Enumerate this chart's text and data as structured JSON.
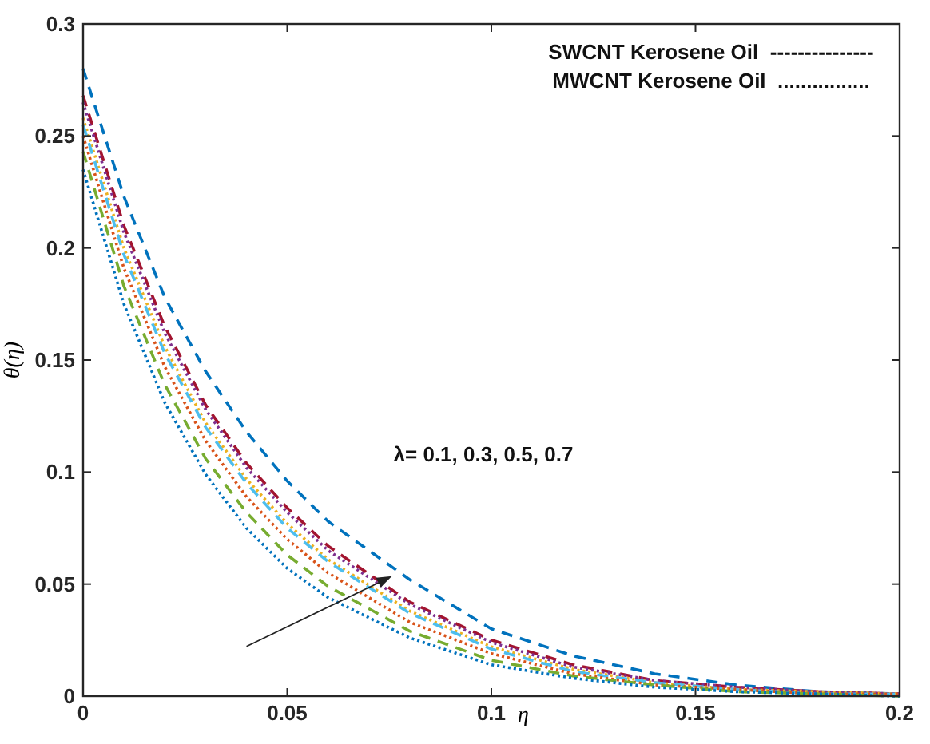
{
  "chart_data": {
    "type": "line",
    "xlabel": "η",
    "ylabel": "θ(η)",
    "x": [
      0,
      0.01,
      0.02,
      0.03,
      0.04,
      0.05,
      0.06,
      0.08,
      0.1,
      0.12,
      0.14,
      0.16,
      0.18,
      0.2
    ],
    "xlim": [
      0,
      0.2
    ],
    "xticks": [
      0,
      0.05,
      0.1,
      0.15,
      0.2
    ],
    "ylim": [
      0,
      0.3
    ],
    "yticks": [
      0,
      0.05,
      0.1,
      0.15,
      0.2,
      0.25,
      0.3
    ],
    "grid": false,
    "marker": "none",
    "series": [
      {
        "color": "#0072bd",
        "line_style": "dashed",
        "values": [
          0.28,
          0.223,
          0.178,
          0.145,
          0.118,
          0.096,
          0.078,
          0.052,
          0.03,
          0.018,
          0.01,
          0.005,
          0.002,
          0.001
        ]
      },
      {
        "color": "#a2142f",
        "line_style": "dashed",
        "values": [
          0.268,
          0.21,
          0.165,
          0.13,
          0.104,
          0.084,
          0.067,
          0.042,
          0.025,
          0.014,
          0.007,
          0.004,
          0.002,
          0.001
        ]
      },
      {
        "color": "#7e2f8e",
        "line_style": "dotted",
        "values": [
          0.265,
          0.207,
          0.162,
          0.128,
          0.102,
          0.082,
          0.065,
          0.041,
          0.024,
          0.013,
          0.007,
          0.004,
          0.002,
          0.001
        ]
      },
      {
        "color": "#edb120",
        "line_style": "dotted",
        "values": [
          0.258,
          0.2,
          0.156,
          0.122,
          0.097,
          0.077,
          0.061,
          0.038,
          0.022,
          0.012,
          0.006,
          0.003,
          0.002,
          0.001
        ]
      },
      {
        "color": "#4dbeee",
        "line_style": "dashed",
        "values": [
          0.255,
          0.197,
          0.153,
          0.12,
          0.095,
          0.075,
          0.06,
          0.037,
          0.021,
          0.011,
          0.006,
          0.003,
          0.001,
          0.001
        ]
      },
      {
        "color": "#d95319",
        "line_style": "dotted",
        "values": [
          0.25,
          0.191,
          0.147,
          0.114,
          0.089,
          0.07,
          0.055,
          0.033,
          0.019,
          0.01,
          0.005,
          0.003,
          0.001,
          0.001
        ]
      },
      {
        "color": "#77ac30",
        "line_style": "dashed",
        "values": [
          0.243,
          0.183,
          0.139,
          0.106,
          0.082,
          0.063,
          0.049,
          0.029,
          0.016,
          0.009,
          0.005,
          0.002,
          0.001,
          0
        ]
      },
      {
        "color": "#0072bd",
        "line_style": "dotted",
        "values": [
          0.235,
          0.175,
          0.131,
          0.099,
          0.075,
          0.057,
          0.044,
          0.026,
          0.014,
          0.008,
          0.004,
          0.002,
          0.001,
          0
        ]
      }
    ],
    "annotations": [
      "SWCNT Kerosene Oil  ---------------",
      "MWCNT Kerosene Oil  ................",
      "λ= 0.1, 0.3, 0.5, 0.7"
    ]
  }
}
